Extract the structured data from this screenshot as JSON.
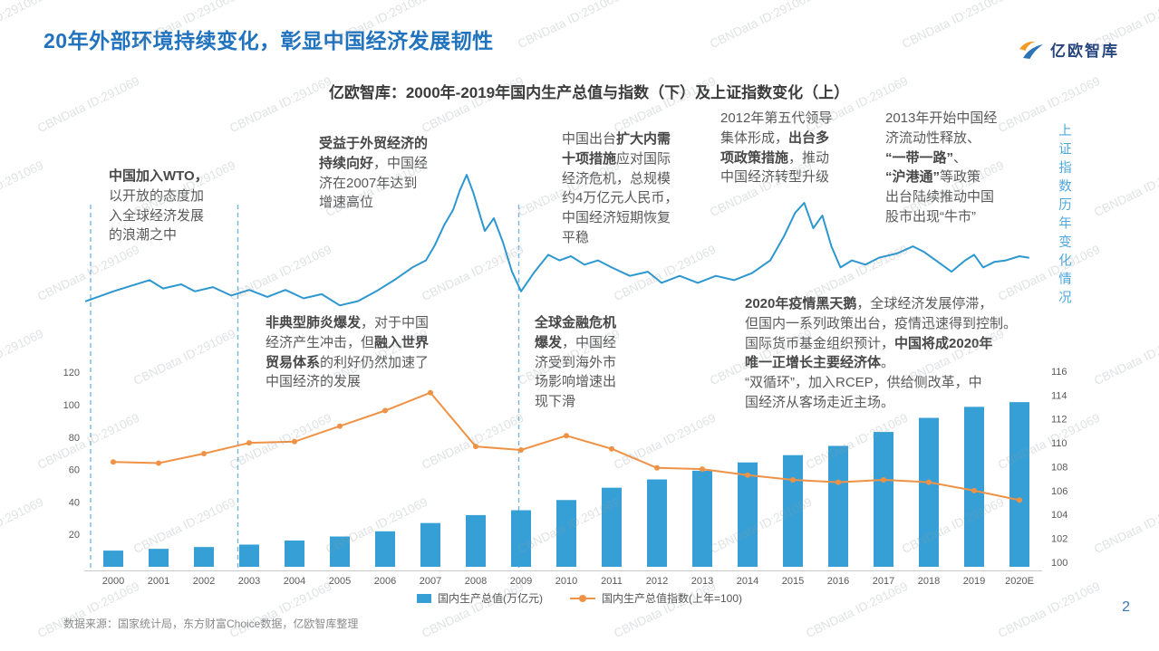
{
  "header": {
    "title": "20年外部环境持续变化，彰显中国经济发展韧性",
    "logo_text": "亿欧智库"
  },
  "chart": {
    "title": "亿欧智库：2000年-2019年国内生产总值与指数（下）及上证指数变化（上）",
    "right_axis_vertical_label": "上证指数历年变化情况"
  },
  "chart_data": {
    "type": "bar",
    "title": "亿欧智库：2000年-2019年国内生产总值与指数（下）及上证指数变化（上）",
    "categories": [
      "2000",
      "2001",
      "2002",
      "2003",
      "2004",
      "2005",
      "2006",
      "2007",
      "2008",
      "2009",
      "2010",
      "2011",
      "2012",
      "2013",
      "2014",
      "2015",
      "2016",
      "2017",
      "2018",
      "2019",
      "2020E"
    ],
    "series": [
      {
        "name": "国内生产总值(万亿元)",
        "type": "bar",
        "axis": "left",
        "in_legend": true,
        "color": "#36A0D6",
        "values": [
          10.0,
          11.1,
          12.2,
          13.7,
          16.2,
          18.7,
          21.9,
          27.0,
          31.9,
          34.9,
          41.2,
          48.8,
          53.9,
          59.3,
          64.4,
          68.9,
          74.6,
          83.2,
          91.9,
          98.7,
          101.6
        ]
      },
      {
        "name": "国内生产总值指数(上年=100)",
        "type": "line",
        "axis": "right",
        "in_legend": true,
        "color": "#EF9245",
        "values": [
          108.4,
          108.3,
          109.1,
          110.0,
          110.1,
          111.4,
          112.7,
          114.2,
          109.7,
          109.4,
          110.6,
          109.5,
          107.9,
          107.8,
          107.3,
          106.9,
          106.7,
          106.9,
          106.7,
          106.0,
          105.2
        ]
      },
      {
        "name": "上证指数历年变化（示意曲线，无数值刻度）",
        "type": "line",
        "axis": "none",
        "in_legend": false,
        "color": "#2D97D0",
        "points_normalized": [
          [
            -0.6,
            8
          ],
          [
            0,
            15
          ],
          [
            0.4,
            19
          ],
          [
            0.8,
            23
          ],
          [
            1.1,
            17
          ],
          [
            1.5,
            20
          ],
          [
            1.8,
            15
          ],
          [
            2.2,
            18
          ],
          [
            2.6,
            12
          ],
          [
            3,
            16
          ],
          [
            3.4,
            11
          ],
          [
            3.8,
            16
          ],
          [
            4.2,
            10
          ],
          [
            4.6,
            13
          ],
          [
            5,
            5
          ],
          [
            5.4,
            8
          ],
          [
            5.8,
            15
          ],
          [
            6.2,
            23
          ],
          [
            6.6,
            32
          ],
          [
            6.9,
            37
          ],
          [
            7.1,
            48
          ],
          [
            7.3,
            62
          ],
          [
            7.5,
            73
          ],
          [
            7.65,
            87
          ],
          [
            7.8,
            98
          ],
          [
            7.95,
            85
          ],
          [
            8.05,
            74
          ],
          [
            8.2,
            58
          ],
          [
            8.4,
            67
          ],
          [
            8.6,
            50
          ],
          [
            8.8,
            29
          ],
          [
            9,
            15
          ],
          [
            9.3,
            29
          ],
          [
            9.6,
            41
          ],
          [
            9.85,
            37
          ],
          [
            10.1,
            40
          ],
          [
            10.4,
            34
          ],
          [
            10.7,
            37
          ],
          [
            11,
            32
          ],
          [
            11.4,
            26
          ],
          [
            11.8,
            29
          ],
          [
            12.1,
            21
          ],
          [
            12.5,
            26
          ],
          [
            12.9,
            21
          ],
          [
            13.3,
            26
          ],
          [
            13.7,
            23
          ],
          [
            14.1,
            28
          ],
          [
            14.5,
            37
          ],
          [
            14.8,
            54
          ],
          [
            15.05,
            71
          ],
          [
            15.25,
            78
          ],
          [
            15.45,
            60
          ],
          [
            15.65,
            69
          ],
          [
            15.85,
            47
          ],
          [
            16.05,
            32
          ],
          [
            16.3,
            37
          ],
          [
            16.6,
            34
          ],
          [
            16.9,
            39
          ],
          [
            17.3,
            42
          ],
          [
            17.65,
            47
          ],
          [
            17.9,
            43
          ],
          [
            18.2,
            36
          ],
          [
            18.5,
            29
          ],
          [
            18.8,
            37
          ],
          [
            19,
            41
          ],
          [
            19.2,
            32
          ],
          [
            19.45,
            36
          ],
          [
            19.7,
            37
          ],
          [
            20,
            40
          ],
          [
            20.2,
            39
          ]
        ]
      }
    ],
    "left_axis": {
      "ticks": [
        20,
        40,
        60,
        80,
        100,
        120
      ],
      "min": 0,
      "max": 130
    },
    "right_axis": {
      "ticks": [
        100,
        102,
        104,
        106,
        108,
        110,
        112,
        114,
        116
      ],
      "min": 100,
      "max": 116
    },
    "event_marker_years": [
      1999.5,
      2002.75,
      2008.95
    ],
    "grid": false,
    "legend_position": "bottom"
  },
  "annotations": [
    {
      "id": "wto",
      "segments": [
        {
          "t": "中国加入WTO，",
          "b": true
        },
        {
          "br": true
        },
        {
          "t": "以开放的态度加",
          "b": false
        },
        {
          "br": true
        },
        {
          "t": "入全球经济发展",
          "b": false
        },
        {
          "br": true
        },
        {
          "t": "的浪潮之中",
          "b": false
        }
      ]
    },
    {
      "id": "waimao",
      "segments": [
        {
          "t": "受益于外贸经济的",
          "b": true
        },
        {
          "br": true
        },
        {
          "t": "持续向好",
          "b": true
        },
        {
          "t": "，中国经",
          "b": false
        },
        {
          "br": true
        },
        {
          "t": "济在2007年达到",
          "b": false
        },
        {
          "br": true
        },
        {
          "t": "增速高位",
          "b": false
        }
      ]
    },
    {
      "id": "sars",
      "segments": [
        {
          "t": "非典型肺炎爆发",
          "b": true
        },
        {
          "t": "，对于中国",
          "b": false
        },
        {
          "br": true
        },
        {
          "t": "经济产生冲击，但",
          "b": false
        },
        {
          "t": "融入世界",
          "b": true
        },
        {
          "br": true
        },
        {
          "t": "贸易体系",
          "b": true
        },
        {
          "t": "的利好仍然加速了",
          "b": false
        },
        {
          "br": true
        },
        {
          "t": "中国经济的发展",
          "b": false
        }
      ]
    },
    {
      "id": "neixu",
      "segments": [
        {
          "t": "中国出台",
          "b": false
        },
        {
          "t": "扩大内需",
          "b": true
        },
        {
          "br": true
        },
        {
          "t": "十项措施",
          "b": true
        },
        {
          "t": "应对国际",
          "b": false
        },
        {
          "br": true
        },
        {
          "t": "经济危机，总规模",
          "b": false
        },
        {
          "br": true
        },
        {
          "t": "约4万亿元人民币，",
          "b": false
        },
        {
          "br": true
        },
        {
          "t": "中国经济短期恢复",
          "b": false
        },
        {
          "br": true
        },
        {
          "t": "平稳",
          "b": false
        }
      ]
    },
    {
      "id": "crisis",
      "segments": [
        {
          "t": "全球金融危机",
          "b": true
        },
        {
          "br": true
        },
        {
          "t": "爆发",
          "b": true
        },
        {
          "t": "，中国经",
          "b": false
        },
        {
          "br": true
        },
        {
          "t": "济受到海外市",
          "b": false
        },
        {
          "br": true
        },
        {
          "t": "场影响增速出",
          "b": false
        },
        {
          "br": true
        },
        {
          "t": "现下滑",
          "b": false
        }
      ]
    },
    {
      "id": "y2012",
      "segments": [
        {
          "t": "2012年第五代领导",
          "b": false
        },
        {
          "br": true
        },
        {
          "t": "集体形成，",
          "b": false
        },
        {
          "t": "出台多",
          "b": true
        },
        {
          "br": true
        },
        {
          "t": "项政策措施",
          "b": true
        },
        {
          "t": "，推动",
          "b": false
        },
        {
          "br": true
        },
        {
          "t": "中国经济转型升级",
          "b": false
        }
      ]
    },
    {
      "id": "y2013",
      "segments": [
        {
          "t": "2013年开始中国经",
          "b": false
        },
        {
          "br": true
        },
        {
          "t": "济流动性释放、",
          "b": false
        },
        {
          "br": true
        },
        {
          "t": "“一带一路”",
          "b": true
        },
        {
          "t": "、",
          "b": false
        },
        {
          "br": true
        },
        {
          "t": "“沪港通”",
          "b": true
        },
        {
          "t": "等政策",
          "b": false
        },
        {
          "br": true
        },
        {
          "t": "出台陆续推动中国",
          "b": false
        },
        {
          "br": true
        },
        {
          "t": "股市出现“牛市”",
          "b": false
        }
      ]
    },
    {
      "id": "y2020",
      "segments": [
        {
          "t": "2020年疫情黑天鹅",
          "b": true
        },
        {
          "t": "，全球经济发展停滞，",
          "b": false
        },
        {
          "br": true
        },
        {
          "t": "但国内一系列政策出台，疫情迅速得到控制。",
          "b": false
        },
        {
          "br": true
        },
        {
          "t": "国际货币基金组织预计，",
          "b": false
        },
        {
          "t": "中国将成2020年",
          "b": true
        },
        {
          "br": true
        },
        {
          "t": "唯一正增长主要经济体",
          "b": true
        },
        {
          "t": "。",
          "b": false
        },
        {
          "br": true
        },
        {
          "t": "“双循环”，加入RCEP，供给侧改革，中",
          "b": false
        },
        {
          "br": true
        },
        {
          "t": "国经济从客场走近主场。",
          "b": false
        }
      ]
    }
  ],
  "footer": {
    "source": "数据来源：国家统计局，东方财富Choice数据，亿欧智库整理",
    "page_number": "2"
  },
  "watermark": {
    "text": "CBNData ID:291069"
  }
}
